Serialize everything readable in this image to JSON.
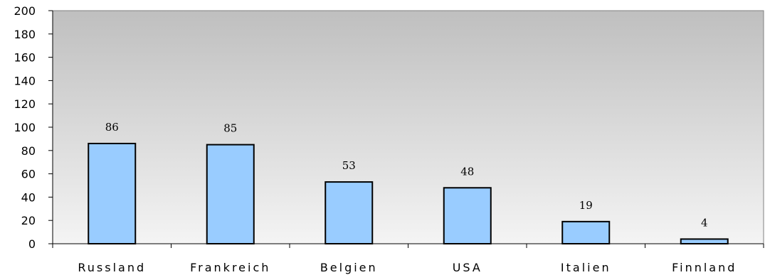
{
  "chart_data": {
    "type": "bar",
    "categories": [
      "Russland",
      "Frankreich",
      "Belgien",
      "USA",
      "Italien",
      "Finnland"
    ],
    "values": [
      86,
      85,
      53,
      48,
      19,
      4
    ],
    "data_labels": [
      "86",
      "85",
      "53",
      "48",
      "19",
      "4"
    ],
    "y_ticks": [
      "0",
      "20",
      "40",
      "60",
      "80",
      "100",
      "120",
      "140",
      "160",
      "180",
      "200"
    ],
    "ylim": [
      0,
      200
    ],
    "title": "",
    "xlabel": "",
    "ylabel": "",
    "grid": false,
    "legend": "none",
    "colors": {
      "bar_fill": "#99ccff",
      "bar_stroke": "#000000",
      "plot_gradient_top": "#bfbfbf",
      "plot_gradient_bottom": "#f4f4f4",
      "axis": "#000000"
    }
  }
}
